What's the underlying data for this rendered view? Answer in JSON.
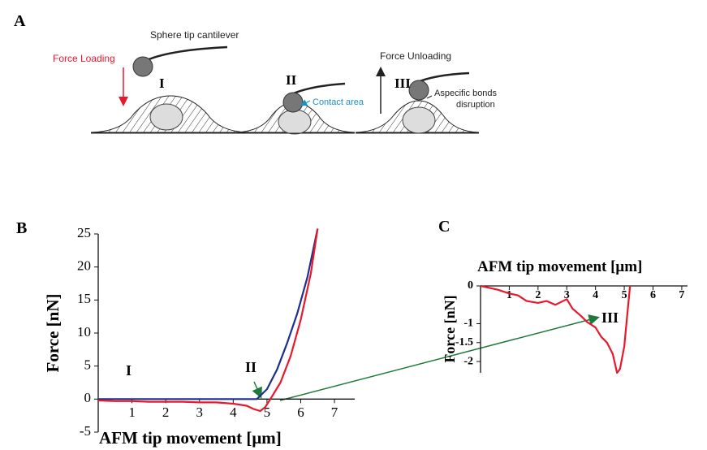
{
  "diagram": {
    "panel_label": "A",
    "cantilever_label": "Sphere tip cantilever",
    "force_loading": "Force Loading",
    "stage_labels": [
      "I",
      "II",
      "III"
    ],
    "contact_area": "Contact area",
    "force_unloading": "Force Unloading",
    "bonds_label": [
      "Aspecific bonds",
      "disruption"
    ]
  },
  "chart_data": [
    {
      "type": "line",
      "panel_label": "B",
      "x_label": "AFM tip movement [μm]",
      "y_label": "Force [nN]",
      "annotations": [
        "I",
        "II"
      ],
      "xlim": [
        0,
        7.6
      ],
      "ylim": [
        -5,
        25
      ],
      "xticks": [
        1,
        2,
        3,
        4,
        5,
        6,
        7
      ],
      "yticks": [
        -5,
        0,
        5,
        10,
        15,
        20,
        25
      ],
      "series": [
        {
          "color": "#1f2f8c",
          "x": [
            0,
            1,
            2,
            3,
            4,
            4.7,
            5,
            5.3,
            5.6,
            5.9,
            6.2,
            6.5
          ],
          "values": [
            0,
            0,
            0,
            0,
            0,
            0,
            1.5,
            4.5,
            8.5,
            13,
            18.5,
            25.8
          ]
        },
        {
          "color": "#e8182a",
          "x": [
            0,
            0.5,
            1,
            1.5,
            2,
            2.5,
            3,
            3.5,
            4,
            4.4,
            4.6,
            4.8,
            4.95,
            5.1,
            5.4,
            5.7,
            6,
            6.3,
            6.5
          ],
          "values": [
            -0.2,
            -0.3,
            -0.3,
            -0.4,
            -0.4,
            -0.4,
            -0.5,
            -0.5,
            -0.7,
            -1,
            -1.5,
            -1.8,
            -1.2,
            0,
            2.5,
            6.5,
            12,
            19,
            25.8
          ]
        }
      ]
    },
    {
      "type": "line",
      "panel_label": "C",
      "x_label": "AFM tip movement [μm]",
      "y_label": "Force [nN]",
      "annotations": [
        "III"
      ],
      "xlim": [
        0,
        7.2
      ],
      "ylim": [
        -2.3,
        0
      ],
      "xticks": [
        1,
        2,
        3,
        4,
        5,
        6,
        7
      ],
      "yticks": [
        0,
        -1,
        -1.5,
        -2
      ],
      "series": [
        {
          "color": "#e8182a",
          "x": [
            0,
            0.3,
            0.6,
            1,
            1.3,
            1.6,
            2,
            2.3,
            2.6,
            3,
            3.2,
            3.5,
            3.7,
            4,
            4.2,
            4.4,
            4.6,
            4.75,
            4.85,
            5,
            5.1,
            5.2
          ],
          "values": [
            0,
            -0.05,
            -0.1,
            -0.2,
            -0.25,
            -0.4,
            -0.45,
            -0.4,
            -0.5,
            -0.35,
            -0.6,
            -0.8,
            -0.95,
            -1.1,
            -1.35,
            -1.5,
            -1.8,
            -2.3,
            -2.2,
            -1.6,
            -0.8,
            0
          ]
        }
      ]
    }
  ]
}
